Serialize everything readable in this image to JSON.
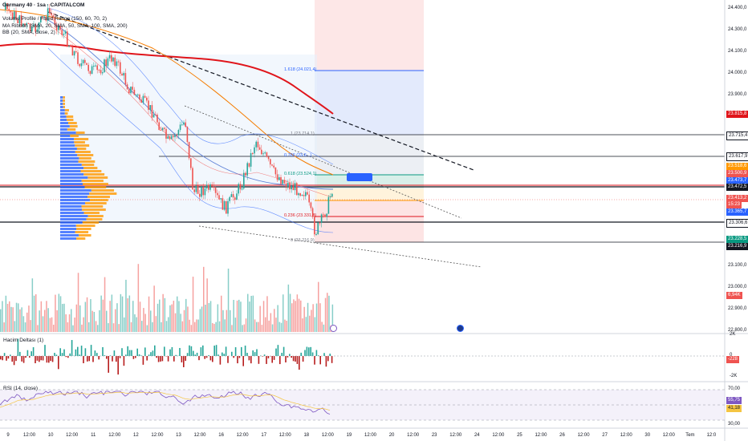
{
  "legend": {
    "symbol": "Germany 40 · 1sa · CAPITALCOM",
    "lines": [
      "Volume Profile / Fixed Range (150, 60, 70, 2)",
      "MA Ribbon (SMA, 20, SMA, 50, SMA, 100, SMA, 200)",
      "BB (20, SMA, close, 2)"
    ]
  },
  "price_axis": {
    "ticks": [
      "24.400,0",
      "24.300,0",
      "24.100,0",
      "24.000,0",
      "23.900,0",
      "23.700,0",
      "23.000,0",
      "23.100,0",
      "23.000,0",
      "22.900,0",
      "22.800,0"
    ]
  },
  "price_tags": {
    "t1": "23.815,8",
    "t2": "23.715,4",
    "t3": "23.617,9",
    "t4": "23.518,6",
    "t5": "23.500,9",
    "t6": "23.473,7",
    "t7": "23.472,5",
    "t8": "23.413,2",
    "t9": "15:23",
    "t10": "23.365,7",
    "t11": "23.306,6",
    "t12": "23.228,5",
    "t13": "23.216,9",
    "t14": "6,94K"
  },
  "fib_labels": [
    "1.618 (24.021,4)",
    "1 (23.714,1)",
    "0.786 (23.6...)",
    "0.618 (23.524,1)",
    "0.236 (23.331,8)",
    "0 (23.216,9)"
  ],
  "position_flag": "",
  "delta_panel": {
    "label": "Hacim Deltası (1)",
    "axis": [
      "2K",
      "0",
      "-2K"
    ],
    "value": "-228"
  },
  "rsi_panel": {
    "label": "RSI (14, close)",
    "axis": [
      "70,00",
      "30,00"
    ],
    "value1": "55,75",
    "value2": "41,18"
  },
  "time_axis": [
    "9",
    "12:00",
    "10",
    "12:00",
    "11",
    "12:00",
    "12",
    "12:00",
    "13",
    "12:00",
    "16",
    "12:00",
    "17",
    "12:00",
    "18",
    "12:00",
    "19",
    "12:00",
    "20",
    "12:00",
    "23",
    "12:00",
    "24",
    "12:00",
    "25",
    "12:00",
    "26",
    "12:00",
    "27",
    "12:00",
    "30",
    "12:00",
    "Tem",
    "12:0"
  ],
  "colors": {
    "up": "#26a69a",
    "down": "#ef5350",
    "ma200": "#e0151b",
    "ma100": "#f57c00",
    "bb": "#2962ff",
    "vp_buy": "#2962ff",
    "vp_sell": "#ff9800"
  }
}
